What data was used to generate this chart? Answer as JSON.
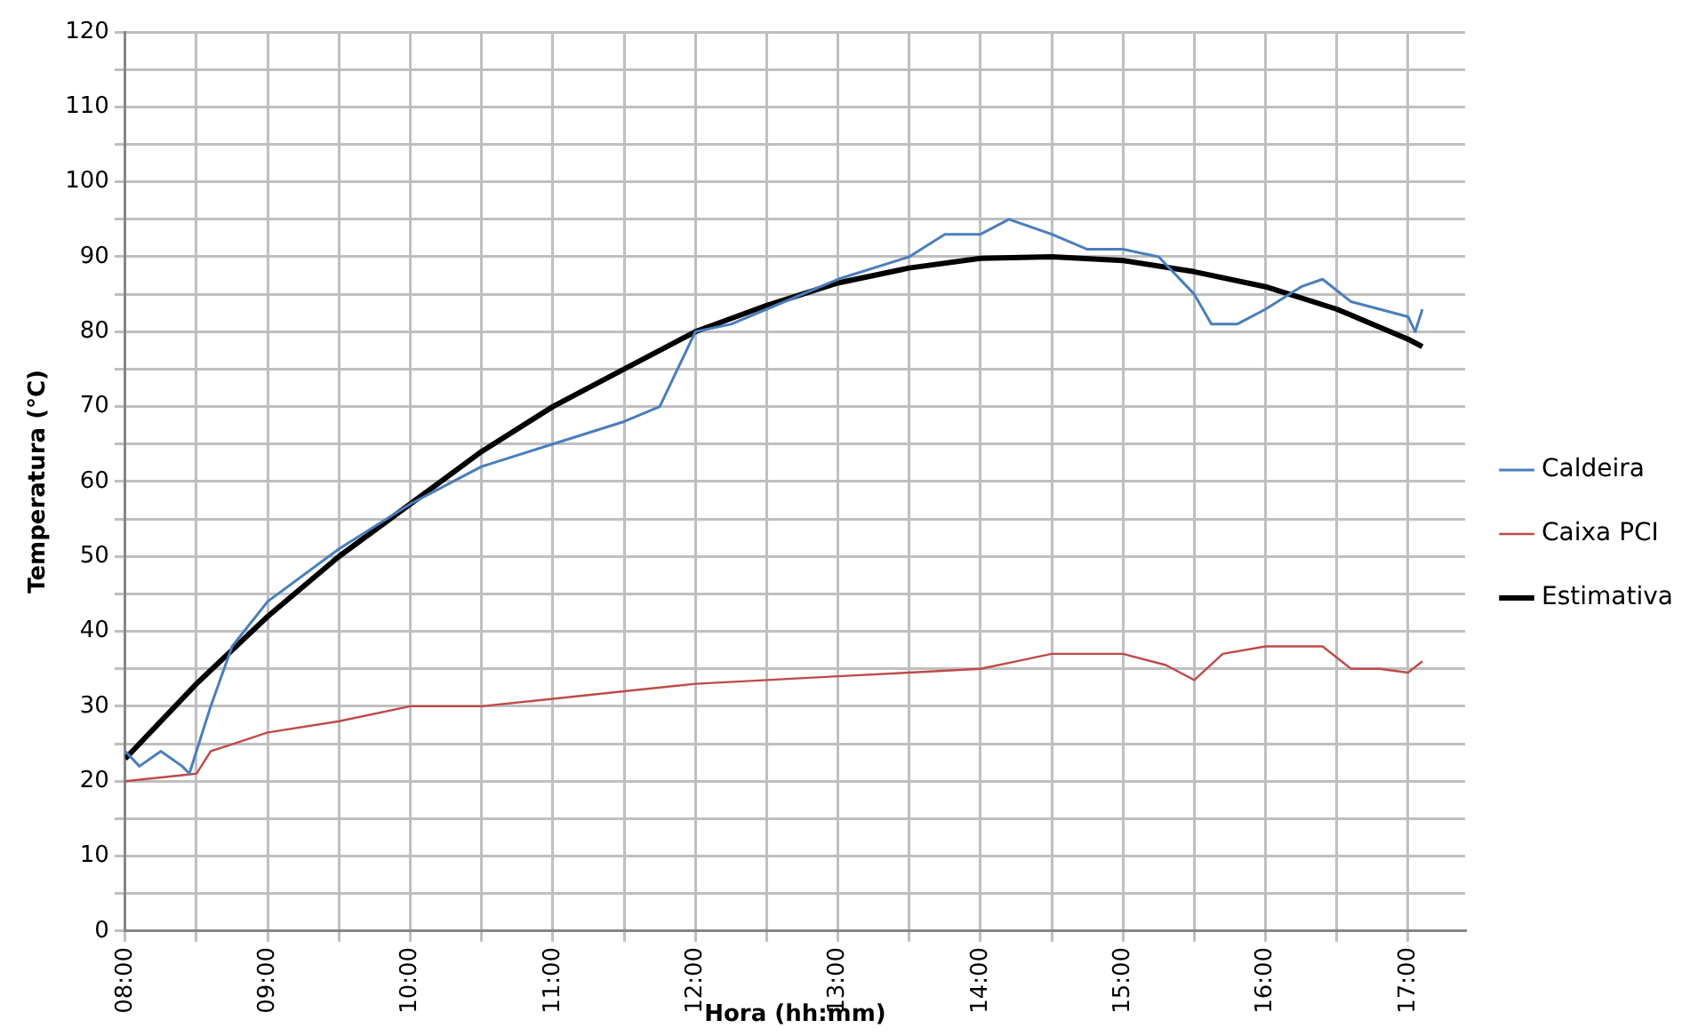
{
  "chart_data": {
    "type": "line",
    "xlabel": "Hora (hh:mm)",
    "ylabel": "Temperatura (°C)",
    "xlim": [
      8,
      17.4
    ],
    "ylim": [
      0,
      120
    ],
    "xticks": [
      {
        "value": 8,
        "label": "08:00"
      },
      {
        "value": 8.5,
        "label": null
      },
      {
        "value": 9,
        "label": "09:00"
      },
      {
        "value": 9.5,
        "label": null
      },
      {
        "value": 10,
        "label": "10:00"
      },
      {
        "value": 10.5,
        "label": null
      },
      {
        "value": 11,
        "label": "11:00"
      },
      {
        "value": 11.5,
        "label": null
      },
      {
        "value": 12,
        "label": "12:00"
      },
      {
        "value": 12.5,
        "label": null
      },
      {
        "value": 13,
        "label": "13:00"
      },
      {
        "value": 13.5,
        "label": null
      },
      {
        "value": 14,
        "label": "14:00"
      },
      {
        "value": 14.5,
        "label": null
      },
      {
        "value": 15,
        "label": "15:00"
      },
      {
        "value": 15.5,
        "label": null
      },
      {
        "value": 16,
        "label": "16:00"
      },
      {
        "value": 16.5,
        "label": null
      },
      {
        "value": 17,
        "label": "17:00"
      }
    ],
    "yticks": [
      0,
      {
        "value": 5,
        "label": null
      },
      10,
      {
        "value": 15,
        "label": null
      },
      20,
      {
        "value": 25,
        "label": null
      },
      30,
      {
        "value": 35,
        "label": null
      },
      40,
      {
        "value": 45,
        "label": null
      },
      50,
      {
        "value": 55,
        "label": null
      },
      60,
      {
        "value": 65,
        "label": null
      },
      70,
      {
        "value": 75,
        "label": null
      },
      80,
      {
        "value": 85,
        "label": null
      },
      90,
      {
        "value": 95,
        "label": null
      },
      100,
      {
        "value": 105,
        "label": null
      },
      110,
      {
        "value": 115,
        "label": null
      },
      120
    ],
    "grid": true,
    "legend": "right",
    "marker": "none",
    "line_style": "solid",
    "series": [
      {
        "name": "Caldeira",
        "color": "#4a7ebb",
        "x": [
          8,
          8.1,
          8.25,
          8.4,
          8.45,
          8.6,
          8.75,
          9,
          9.5,
          10,
          10.5,
          11,
          11.5,
          11.75,
          12,
          12.25,
          12.5,
          13,
          13.5,
          13.75,
          14,
          14.2,
          14.5,
          14.75,
          15,
          15.25,
          15.5,
          15.62,
          15.8,
          16,
          16.25,
          16.4,
          16.6,
          16.8,
          17,
          17.05,
          17.1
        ],
        "values": [
          24,
          22,
          24,
          22,
          21,
          30,
          38,
          44,
          51,
          57,
          62,
          65,
          68,
          70,
          80,
          81,
          83,
          87,
          90,
          93,
          93,
          95,
          93,
          91,
          91,
          90,
          85,
          81,
          81,
          83,
          86,
          87,
          84,
          83,
          82,
          80,
          83
        ]
      },
      {
        "name": "Caixa PCI",
        "color": "#be4b48",
        "x": [
          8,
          8.5,
          8.6,
          9,
          9.5,
          10,
          10.5,
          11,
          11.5,
          12,
          12.5,
          13,
          13.5,
          14,
          14.25,
          14.5,
          15,
          15.3,
          15.5,
          15.7,
          16,
          16.4,
          16.6,
          16.8,
          17,
          17.1
        ],
        "values": [
          20,
          21,
          24,
          26.5,
          28,
          30,
          30,
          31,
          32,
          33,
          33.5,
          34,
          34.5,
          35,
          36,
          37,
          37,
          35.5,
          33.5,
          37,
          38,
          38,
          35,
          35,
          34.5,
          36
        ]
      },
      {
        "name": "Estimativa",
        "color": "#000000",
        "x": [
          8,
          8.5,
          9,
          9.5,
          10,
          10.5,
          11,
          11.5,
          12,
          12.5,
          13,
          13.5,
          14,
          14.5,
          15,
          15.5,
          16,
          16.5,
          17,
          17.1
        ],
        "values": [
          23,
          33,
          42,
          50,
          57,
          64,
          70,
          75,
          80,
          83.5,
          86.5,
          88.5,
          89.8,
          90,
          89.5,
          88,
          86,
          83,
          79,
          78
        ]
      }
    ]
  }
}
